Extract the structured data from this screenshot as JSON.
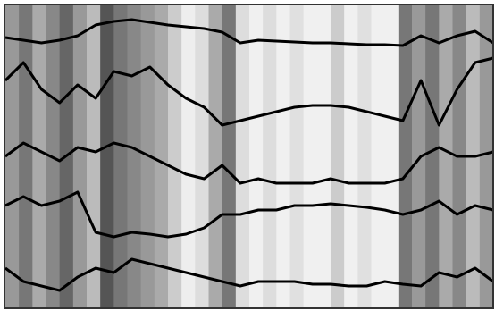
{
  "chart_data": {
    "type": "line",
    "ylim": [
      0,
      340
    ],
    "line_color": "#000000",
    "band_colors": [
      "#999999",
      "#777777",
      "#aaaaaa",
      "#888888",
      "#666666",
      "#999999",
      "#bbbbbb",
      "#555555",
      "#777777",
      "#888888",
      "#999999",
      "#aaaaaa",
      "#cccccc",
      "#eeeeee",
      "#dddddd",
      "#aaaaaa",
      "#777777",
      "#dddddd",
      "#f0f0f0",
      "#dddddd",
      "#f0f0f0",
      "#e0e0e0",
      "#f0f0f0",
      "#f0f0f0",
      "#cccccc",
      "#f0f0f0",
      "#e0e0e0",
      "#f0f0f0",
      "#f0f0f0",
      "#777777",
      "#999999",
      "#777777",
      "#aaaaaa",
      "#888888",
      "#bbbbbb",
      "#999999"
    ],
    "series": [
      {
        "values": [
          302,
          299,
          296,
          299,
          304,
          316,
          320,
          322,
          319,
          316,
          314,
          312,
          308,
          296,
          299,
          298,
          297,
          296,
          296,
          295,
          294,
          294,
          293,
          304,
          296,
          304,
          309,
          296
        ]
      },
      {
        "values": [
          254,
          274,
          244,
          229,
          249,
          234,
          264,
          259,
          269,
          249,
          234,
          224,
          204,
          209,
          214,
          219,
          224,
          226,
          226,
          224,
          219,
          214,
          209,
          254,
          204,
          244,
          274,
          279
        ]
      },
      {
        "values": [
          169,
          184,
          174,
          164,
          179,
          174,
          184,
          179,
          169,
          159,
          149,
          144,
          159,
          139,
          144,
          139,
          139,
          139,
          144,
          139,
          139,
          139,
          144,
          169,
          179,
          169,
          169,
          174
        ]
      },
      {
        "values": [
          114,
          124,
          114,
          119,
          129,
          84,
          79,
          84,
          82,
          79,
          82,
          89,
          104,
          104,
          109,
          109,
          114,
          114,
          116,
          114,
          112,
          109,
          104,
          109,
          119,
          104,
          114,
          109
        ]
      },
      {
        "values": [
          44,
          29,
          24,
          19,
          34,
          44,
          39,
          54,
          49,
          44,
          39,
          34,
          29,
          24,
          29,
          29,
          29,
          26,
          26,
          24,
          24,
          29,
          26,
          24,
          39,
          34,
          44,
          29
        ]
      }
    ]
  }
}
